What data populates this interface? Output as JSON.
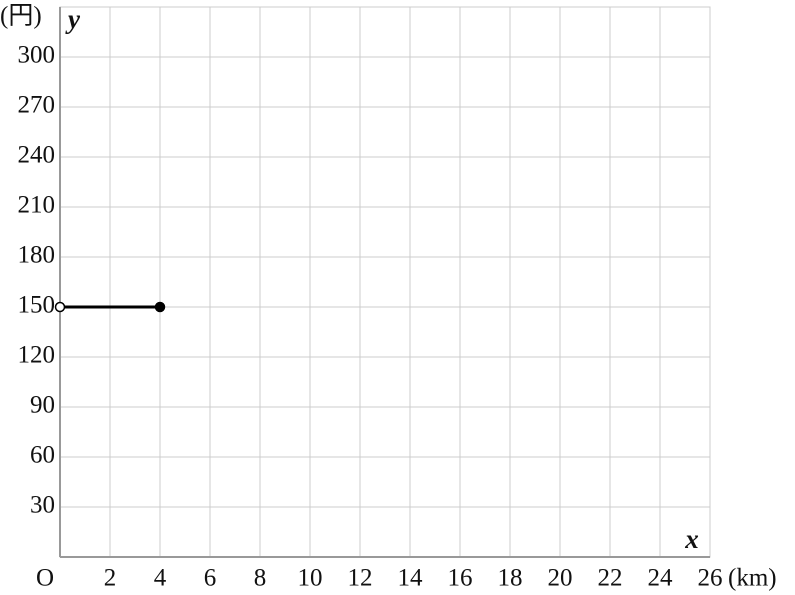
{
  "chart_data": {
    "type": "line",
    "x_label": "x",
    "y_label": "y",
    "x_unit": "(km)",
    "y_unit": "(円)",
    "origin_label": "O",
    "series": [
      {
        "x": [
          0,
          4
        ],
        "values": [
          150,
          150
        ],
        "color": "#000000",
        "endpoints": [
          "open",
          "closed"
        ]
      }
    ],
    "xlim": [
      0,
      26
    ],
    "ylim": [
      0,
      330
    ],
    "xticks": [
      2,
      4,
      6,
      8,
      10,
      12,
      14,
      16,
      18,
      20,
      22,
      24,
      26
    ],
    "yticks": [
      30,
      60,
      90,
      120,
      150,
      180,
      210,
      240,
      270,
      300
    ],
    "grid": true
  }
}
